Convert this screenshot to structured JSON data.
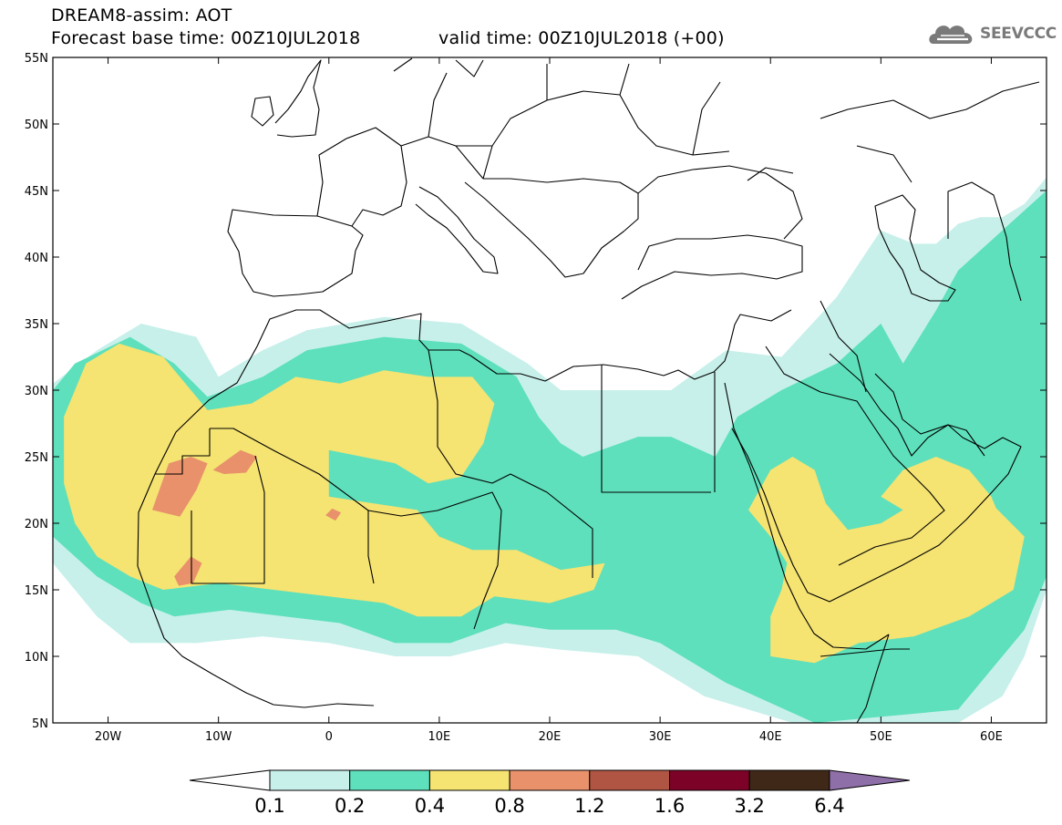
{
  "header": {
    "title": "DREAM8-assim: AOT",
    "base_time": "Forecast base time: 00Z10JUL2018",
    "valid_time": "valid time: 00Z10JUL2018 (+00)"
  },
  "logo": {
    "text": "SEEVCCC",
    "icon": "cloud-icon",
    "color": "#7a7a7a"
  },
  "map": {
    "lon_range": [
      -25,
      65
    ],
    "lat_range": [
      5,
      55
    ],
    "lat_ticks": [
      {
        "value": 55,
        "label": "55N"
      },
      {
        "value": 50,
        "label": "50N"
      },
      {
        "value": 45,
        "label": "45N"
      },
      {
        "value": 40,
        "label": "40N"
      },
      {
        "value": 35,
        "label": "35N"
      },
      {
        "value": 30,
        "label": "30N"
      },
      {
        "value": 25,
        "label": "25N"
      },
      {
        "value": 20,
        "label": "20N"
      },
      {
        "value": 15,
        "label": "15N"
      },
      {
        "value": 10,
        "label": "10N"
      },
      {
        "value": 5,
        "label": "5N"
      }
    ],
    "lon_ticks": [
      {
        "value": -20,
        "label": "20W"
      },
      {
        "value": -10,
        "label": "10W"
      },
      {
        "value": 0,
        "label": "0"
      },
      {
        "value": 10,
        "label": "10E"
      },
      {
        "value": 20,
        "label": "20E"
      },
      {
        "value": 30,
        "label": "30E"
      },
      {
        "value": 40,
        "label": "40E"
      },
      {
        "value": 50,
        "label": "50E"
      },
      {
        "value": 60,
        "label": "60E"
      }
    ]
  },
  "colorbar": {
    "bins": [
      {
        "color": "#c7f0eb"
      },
      {
        "color": "#5ee0bc"
      },
      {
        "color": "#f5e372"
      },
      {
        "color": "#e8916b"
      },
      {
        "color": "#b05543"
      },
      {
        "color": "#7d0227"
      },
      {
        "color": "#3f2818"
      }
    ],
    "low_extend_color": "#ffffff",
    "high_extend_color": "#8e6fa8",
    "labels": [
      "0.1",
      "0.2",
      "0.4",
      "0.8",
      "1.2",
      "1.6",
      "3.2",
      "6.4"
    ]
  },
  "chart_data": {
    "type": "filled-contour-map",
    "variable": "AOT",
    "levels": [
      0.1,
      0.2,
      0.4,
      0.8,
      1.2,
      1.6,
      3.2,
      6.4
    ],
    "regions": [
      {
        "level": 0.1,
        "polygon": [
          [
            -25,
            30.5
          ],
          [
            -21,
            33
          ],
          [
            -17,
            35
          ],
          [
            -12,
            34
          ],
          [
            -10,
            31
          ],
          [
            -6,
            33
          ],
          [
            -2,
            34.5
          ],
          [
            5,
            35.5
          ],
          [
            12,
            35
          ],
          [
            18,
            32
          ],
          [
            21,
            30
          ],
          [
            26,
            30
          ],
          [
            31,
            30
          ],
          [
            36,
            33
          ],
          [
            41,
            32.5
          ],
          [
            46,
            37
          ],
          [
            50,
            42
          ],
          [
            53,
            41
          ],
          [
            55,
            41
          ],
          [
            57,
            42.5
          ],
          [
            59,
            43
          ],
          [
            61,
            43
          ],
          [
            63,
            44
          ],
          [
            65,
            46
          ],
          [
            65,
            15
          ],
          [
            63,
            10
          ],
          [
            61,
            7
          ],
          [
            57,
            5
          ],
          [
            42,
            5
          ],
          [
            34,
            7
          ],
          [
            28,
            10
          ],
          [
            21,
            10.5
          ],
          [
            16,
            11
          ],
          [
            11,
            10
          ],
          [
            6,
            10
          ],
          [
            0,
            11
          ],
          [
            -6,
            11.5
          ],
          [
            -12,
            11
          ],
          [
            -18,
            11
          ],
          [
            -21,
            13
          ],
          [
            -25,
            17
          ]
        ]
      },
      {
        "level": 0.2,
        "polygon": [
          [
            -25,
            30
          ],
          [
            -23,
            32
          ],
          [
            -18,
            34
          ],
          [
            -14,
            32
          ],
          [
            -11,
            29.5
          ],
          [
            -6,
            31
          ],
          [
            -2,
            33
          ],
          [
            5,
            34
          ],
          [
            12,
            33.5
          ],
          [
            17,
            31
          ],
          [
            19,
            28
          ],
          [
            21,
            26
          ],
          [
            23,
            25
          ],
          [
            28,
            26.5
          ],
          [
            31,
            26.5
          ],
          [
            35,
            25
          ],
          [
            37,
            28
          ],
          [
            41,
            30
          ],
          [
            46,
            32
          ],
          [
            50,
            35
          ],
          [
            52,
            32
          ],
          [
            55,
            36
          ],
          [
            57,
            39
          ],
          [
            61,
            42
          ],
          [
            63,
            43.5
          ],
          [
            65,
            45
          ],
          [
            65,
            16
          ],
          [
            63,
            12
          ],
          [
            60,
            9
          ],
          [
            57,
            6
          ],
          [
            44,
            5
          ],
          [
            36,
            8
          ],
          [
            30,
            11
          ],
          [
            26,
            12
          ],
          [
            20,
            12
          ],
          [
            16,
            12.5
          ],
          [
            11,
            11
          ],
          [
            6,
            11
          ],
          [
            1,
            12.5
          ],
          [
            -4,
            13
          ],
          [
            -9,
            13.5
          ],
          [
            -14,
            13
          ],
          [
            -17,
            14
          ],
          [
            -21,
            16
          ],
          [
            -25,
            19
          ]
        ]
      },
      {
        "level": 0.4,
        "polygon": [
          [
            -24,
            28
          ],
          [
            -22,
            32
          ],
          [
            -19,
            33.5
          ],
          [
            -15,
            32.5
          ],
          [
            -11,
            28.5
          ],
          [
            -7,
            29
          ],
          [
            -3,
            31
          ],
          [
            1,
            30.5
          ],
          [
            5,
            31.5
          ],
          [
            9,
            31
          ],
          [
            13,
            31
          ],
          [
            15,
            29
          ],
          [
            14,
            26
          ],
          [
            12,
            23.5
          ],
          [
            9,
            23
          ],
          [
            6,
            24.5
          ],
          [
            3,
            25
          ],
          [
            0,
            25.5
          ],
          [
            0,
            22
          ],
          [
            4,
            21.5
          ],
          [
            8,
            21
          ],
          [
            10,
            19
          ],
          [
            13,
            18
          ],
          [
            17,
            18
          ],
          [
            21,
            16.5
          ],
          [
            25,
            17
          ],
          [
            24,
            15
          ],
          [
            20,
            14
          ],
          [
            15,
            14.5
          ],
          [
            12,
            13
          ],
          [
            8,
            13
          ],
          [
            5,
            14
          ],
          [
            0,
            14.5
          ],
          [
            -5,
            15
          ],
          [
            -10,
            15.5
          ],
          [
            -15,
            15
          ],
          [
            -18,
            16
          ],
          [
            -21,
            17.5
          ],
          [
            -23,
            20
          ],
          [
            -24,
            23
          ]
        ]
      },
      {
        "level": 0.4,
        "polygon": [
          [
            38,
            21
          ],
          [
            40,
            19
          ],
          [
            41.5,
            17
          ],
          [
            41,
            15
          ],
          [
            40,
            13
          ],
          [
            40,
            10
          ],
          [
            44,
            9.5
          ],
          [
            48,
            11
          ],
          [
            53,
            11.5
          ],
          [
            58,
            13
          ],
          [
            62,
            15
          ],
          [
            63,
            19
          ],
          [
            60,
            21.5
          ],
          [
            57,
            23
          ],
          [
            54,
            22
          ],
          [
            50,
            20
          ],
          [
            47,
            19.5
          ],
          [
            45,
            21.5
          ],
          [
            44,
            24
          ],
          [
            42,
            25
          ],
          [
            40,
            24
          ]
        ]
      },
      {
        "level": 0.4,
        "polygon": [
          [
            50,
            22
          ],
          [
            52,
            24
          ],
          [
            55,
            25
          ],
          [
            58,
            24
          ],
          [
            60,
            22
          ],
          [
            61,
            20
          ],
          [
            59,
            19
          ],
          [
            57,
            20
          ],
          [
            55,
            21
          ],
          [
            52,
            21
          ]
        ]
      },
      {
        "level": 0.8,
        "polygon": [
          [
            -16,
            21
          ],
          [
            -14.5,
            24.5
          ],
          [
            -12.5,
            25
          ],
          [
            -11,
            24.5
          ],
          [
            -12,
            22.5
          ],
          [
            -13.5,
            20.5
          ]
        ]
      },
      {
        "level": 0.8,
        "polygon": [
          [
            -10.5,
            24
          ],
          [
            -8,
            25.5
          ],
          [
            -6.5,
            25
          ],
          [
            -7.5,
            23.8
          ],
          [
            -9.5,
            23.7
          ]
        ]
      },
      {
        "level": 0.8,
        "polygon": [
          [
            -14,
            16
          ],
          [
            -12.5,
            17.5
          ],
          [
            -11.5,
            17
          ],
          [
            -12.3,
            15.5
          ],
          [
            -13.6,
            15.3
          ]
        ]
      },
      {
        "level": 0.8,
        "polygon": [
          [
            -0.3,
            20.6
          ],
          [
            0.3,
            21.1
          ],
          [
            1.1,
            20.8
          ],
          [
            0.6,
            20.2
          ]
        ]
      }
    ]
  }
}
